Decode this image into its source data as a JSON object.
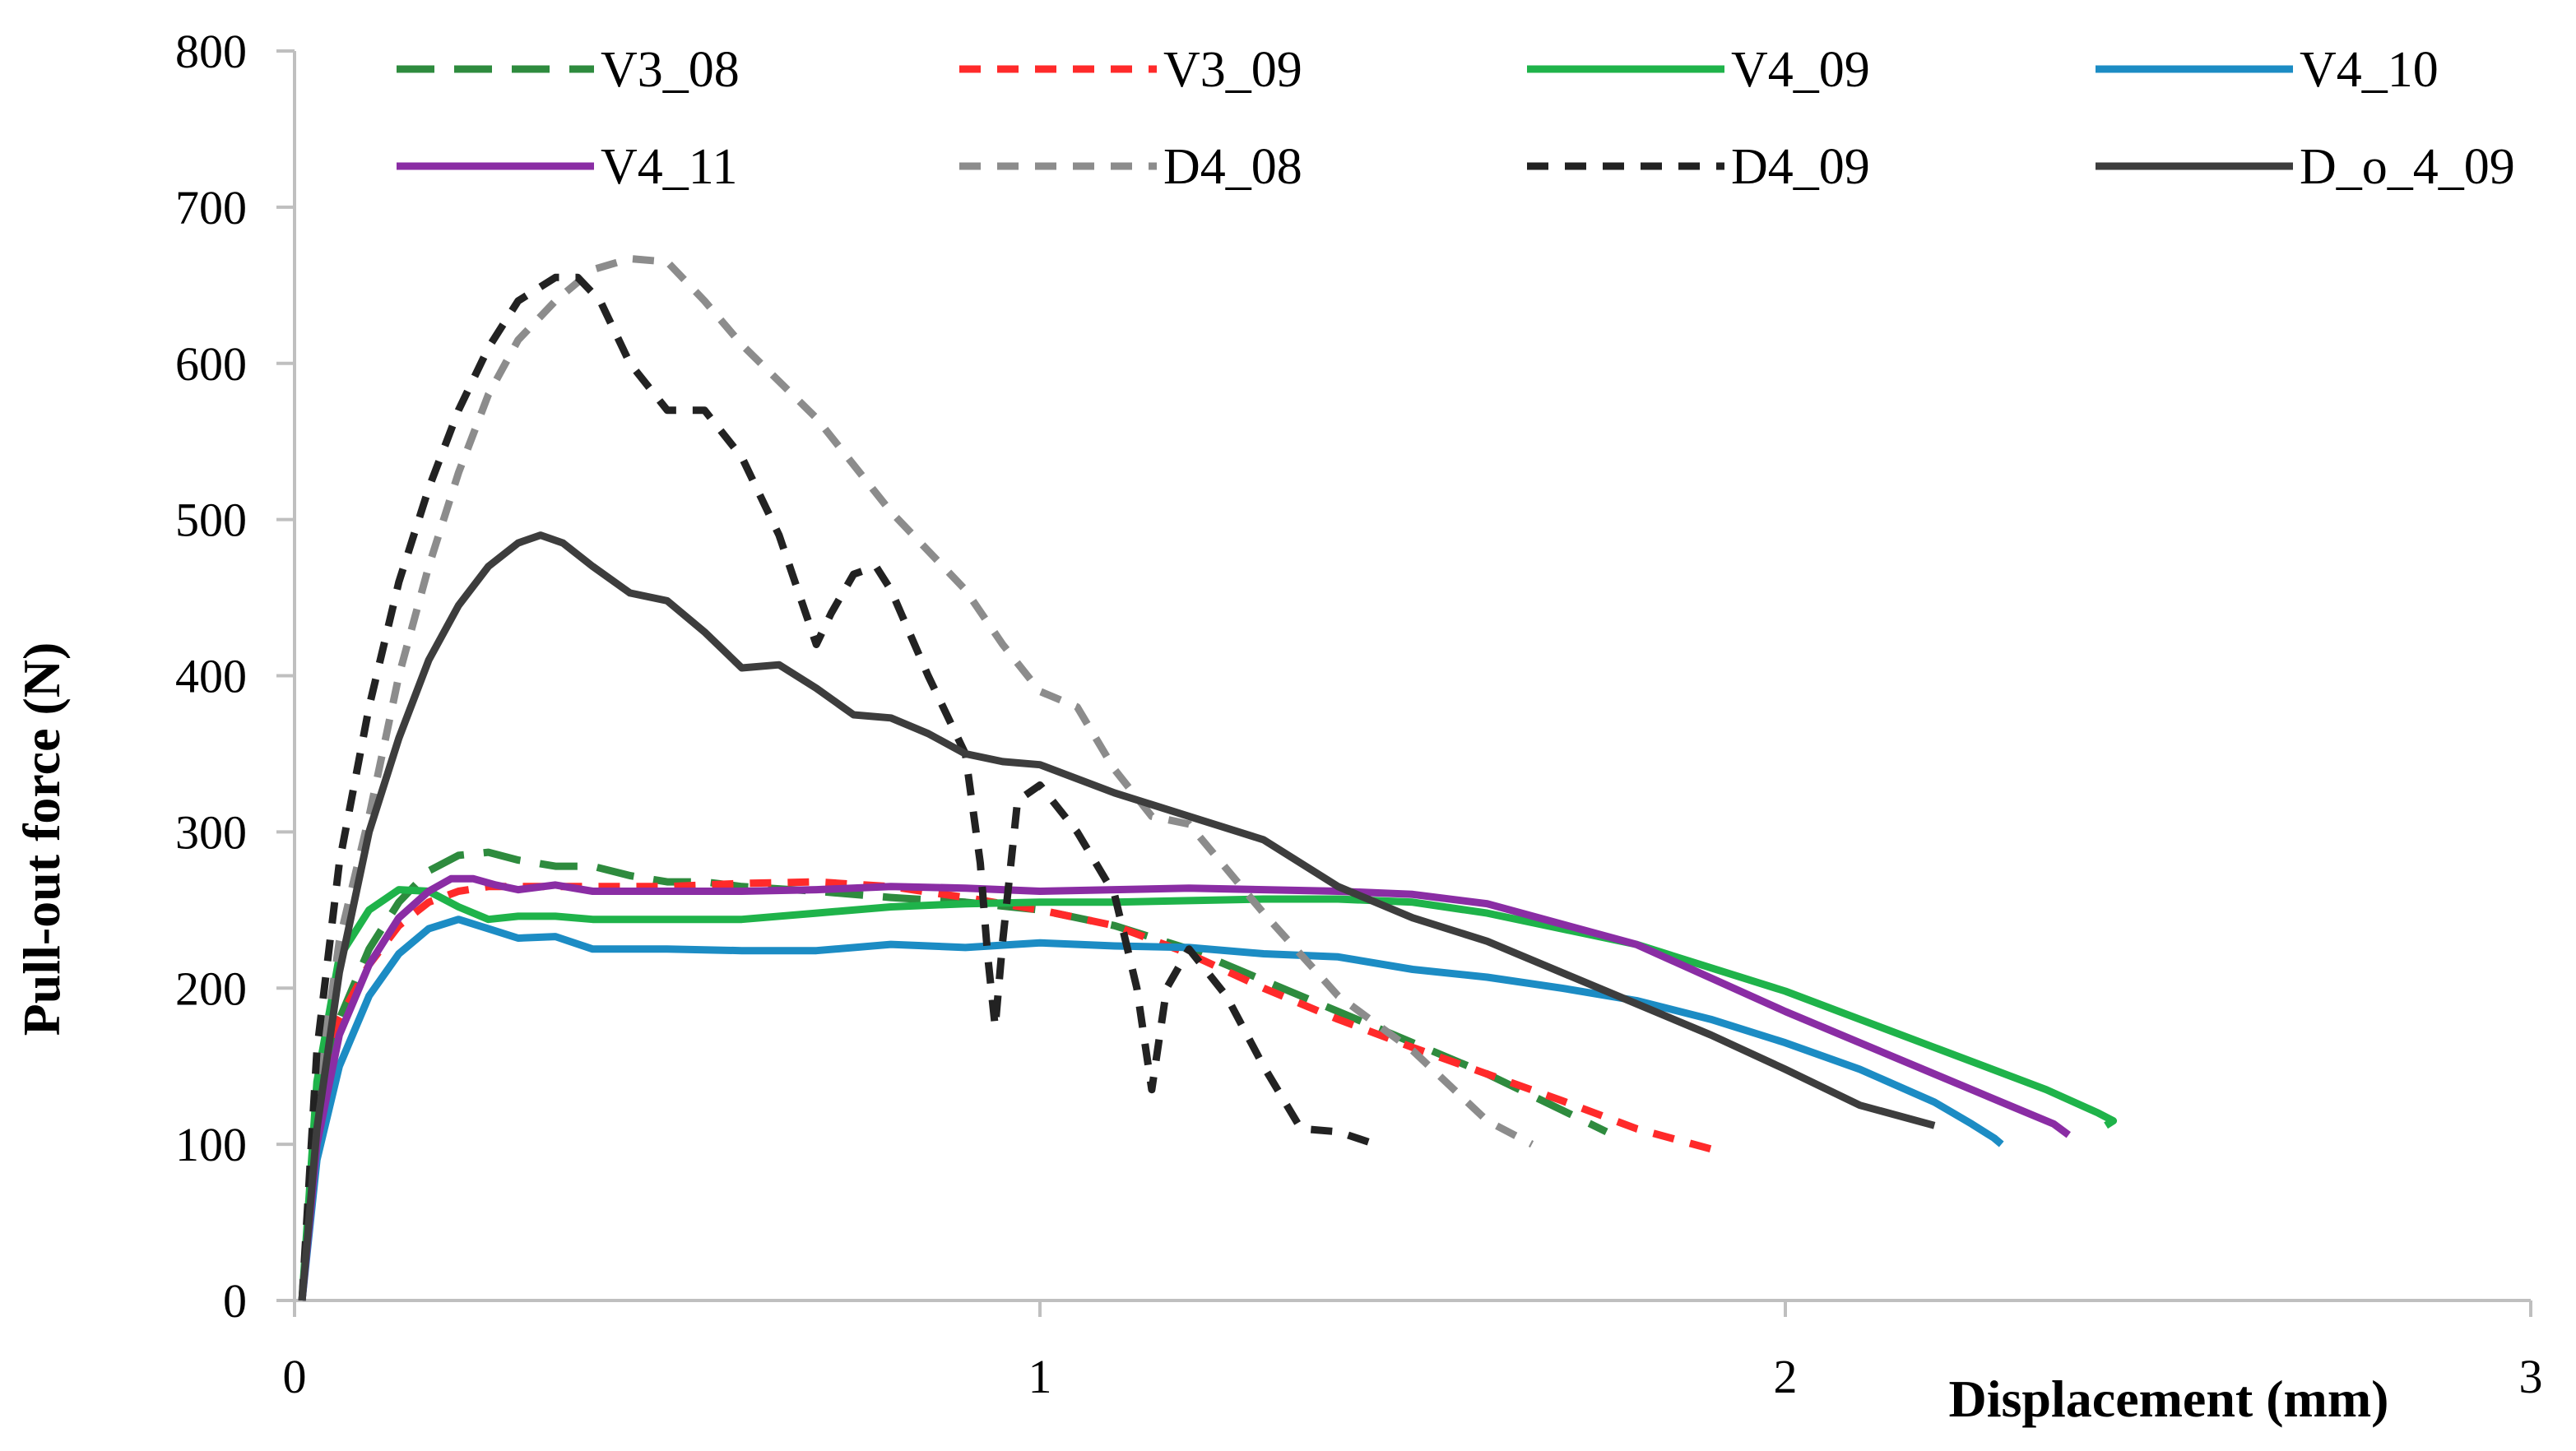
{
  "chart_data": {
    "type": "line",
    "title": "",
    "xlabel": "Displacement (mm)",
    "ylabel": "Pull-out force (N)",
    "xlim": [
      0,
      3
    ],
    "ylim": [
      0,
      800
    ],
    "x_ticks": [
      "0",
      "1",
      "2",
      "3"
    ],
    "x_tick_values": [
      0,
      1,
      2,
      3
    ],
    "y_ticks": [
      "0",
      "100",
      "200",
      "300",
      "400",
      "500",
      "600",
      "700",
      "800"
    ],
    "y_tick_values": [
      0,
      100,
      200,
      300,
      400,
      500,
      600,
      700,
      800
    ],
    "grid": false,
    "legend_position": "top",
    "series": [
      {
        "name": "V3_08",
        "color": "#2e8b3e",
        "dash": "long-dash",
        "x": [
          0.01,
          0.03,
          0.06,
          0.1,
          0.14,
          0.18,
          0.22,
          0.26,
          0.3,
          0.35,
          0.4,
          0.45,
          0.5,
          0.55,
          0.6,
          0.7,
          0.8,
          0.9,
          1.0,
          1.1,
          1.2,
          1.3,
          1.4,
          1.5,
          1.6,
          1.7,
          1.76
        ],
        "values": [
          0,
          120,
          180,
          225,
          255,
          275,
          285,
          287,
          282,
          278,
          278,
          272,
          268,
          268,
          265,
          262,
          258,
          255,
          250,
          240,
          225,
          205,
          185,
          165,
          145,
          122,
          108
        ]
      },
      {
        "name": "V3_09",
        "color": "#ff2a2a",
        "dash": "short-dash",
        "x": [
          0.01,
          0.03,
          0.06,
          0.1,
          0.14,
          0.18,
          0.22,
          0.26,
          0.3,
          0.4,
          0.5,
          0.6,
          0.7,
          0.8,
          0.9,
          1.0,
          1.1,
          1.2,
          1.3,
          1.4,
          1.5,
          1.6,
          1.7,
          1.8,
          1.9
        ],
        "values": [
          0,
          110,
          180,
          215,
          240,
          255,
          262,
          265,
          265,
          265,
          265,
          267,
          268,
          265,
          258,
          250,
          240,
          222,
          200,
          180,
          162,
          145,
          128,
          110,
          97
        ]
      },
      {
        "name": "V4_09",
        "color": "#1fb34a",
        "dash": "solid",
        "x": [
          0.01,
          0.03,
          0.06,
          0.1,
          0.14,
          0.18,
          0.22,
          0.26,
          0.3,
          0.35,
          0.4,
          0.5,
          0.6,
          0.7,
          0.8,
          0.9,
          1.0,
          1.1,
          1.2,
          1.3,
          1.4,
          1.5,
          1.6,
          1.8,
          2.0,
          2.2,
          2.35,
          2.42,
          2.44,
          2.43
        ],
        "values": [
          0,
          140,
          220,
          250,
          263,
          262,
          252,
          244,
          246,
          246,
          244,
          244,
          244,
          248,
          252,
          254,
          255,
          255,
          256,
          257,
          257,
          255,
          248,
          228,
          198,
          162,
          135,
          120,
          115,
          112
        ]
      },
      {
        "name": "V4_10",
        "color": "#1c8cc4",
        "dash": "solid",
        "x": [
          0.01,
          0.03,
          0.06,
          0.1,
          0.14,
          0.18,
          0.22,
          0.26,
          0.3,
          0.35,
          0.4,
          0.5,
          0.6,
          0.7,
          0.8,
          0.9,
          1.0,
          1.1,
          1.2,
          1.3,
          1.4,
          1.5,
          1.6,
          1.7,
          1.8,
          1.9,
          2.0,
          2.1,
          2.2,
          2.25,
          2.28,
          2.29
        ],
        "values": [
          0,
          90,
          150,
          195,
          222,
          238,
          244,
          238,
          232,
          233,
          225,
          225,
          224,
          224,
          228,
          226,
          229,
          227,
          226,
          222,
          220,
          212,
          207,
          200,
          192,
          180,
          165,
          148,
          127,
          113,
          104,
          100
        ]
      },
      {
        "name": "V4_11",
        "color": "#8a2da4",
        "dash": "solid",
        "x": [
          0.01,
          0.03,
          0.06,
          0.1,
          0.14,
          0.18,
          0.21,
          0.24,
          0.27,
          0.3,
          0.35,
          0.4,
          0.5,
          0.6,
          0.7,
          0.8,
          0.9,
          1.0,
          1.1,
          1.2,
          1.3,
          1.4,
          1.5,
          1.6,
          1.8,
          2.0,
          2.2,
          2.3,
          2.36,
          2.38
        ],
        "values": [
          0,
          100,
          170,
          215,
          245,
          262,
          270,
          270,
          266,
          263,
          266,
          262,
          262,
          262,
          263,
          265,
          264,
          262,
          263,
          264,
          263,
          262,
          260,
          254,
          228,
          185,
          145,
          125,
          113,
          106
        ]
      },
      {
        "name": "D4_08",
        "color": "#8c8c8c",
        "dash": "short-dash",
        "x": [
          0.01,
          0.03,
          0.06,
          0.1,
          0.14,
          0.18,
          0.22,
          0.26,
          0.3,
          0.35,
          0.4,
          0.45,
          0.5,
          0.55,
          0.6,
          0.7,
          0.8,
          0.9,
          0.95,
          1.0,
          1.05,
          1.1,
          1.15,
          1.2,
          1.3,
          1.4,
          1.5,
          1.6,
          1.66
        ],
        "values": [
          0,
          130,
          230,
          310,
          400,
          470,
          530,
          580,
          615,
          640,
          660,
          667,
          665,
          640,
          612,
          565,
          505,
          455,
          420,
          390,
          380,
          340,
          310,
          305,
          248,
          195,
          160,
          115,
          100
        ]
      },
      {
        "name": "D4_09",
        "color": "#222222",
        "dash": "short-dash",
        "x": [
          0.01,
          0.03,
          0.06,
          0.1,
          0.14,
          0.18,
          0.22,
          0.26,
          0.3,
          0.35,
          0.38,
          0.41,
          0.45,
          0.5,
          0.55,
          0.6,
          0.65,
          0.7,
          0.72,
          0.75,
          0.78,
          0.8,
          0.85,
          0.9,
          0.92,
          0.93,
          0.94,
          0.95,
          0.97,
          1.0,
          1.05,
          1.1,
          1.13,
          1.15,
          1.17,
          1.2,
          1.25,
          1.3,
          1.35,
          1.4,
          1.45
        ],
        "values": [
          0,
          160,
          280,
          380,
          460,
          520,
          570,
          610,
          640,
          655,
          655,
          640,
          600,
          570,
          570,
          540,
          490,
          420,
          440,
          465,
          470,
          455,
          400,
          350,
          280,
          220,
          175,
          230,
          320,
          330,
          300,
          260,
          200,
          135,
          200,
          225,
          195,
          150,
          110,
          108,
          100
        ]
      },
      {
        "name": "D_o_4_09",
        "color": "#3d3d3d",
        "dash": "solid",
        "x": [
          0.01,
          0.03,
          0.06,
          0.1,
          0.14,
          0.18,
          0.22,
          0.26,
          0.3,
          0.33,
          0.36,
          0.4,
          0.45,
          0.5,
          0.55,
          0.6,
          0.65,
          0.7,
          0.75,
          0.8,
          0.85,
          0.9,
          0.95,
          1.0,
          1.1,
          1.2,
          1.3,
          1.4,
          1.5,
          1.6,
          1.7,
          1.8,
          1.9,
          2.0,
          2.1,
          2.2
        ],
        "values": [
          0,
          110,
          210,
          300,
          360,
          410,
          445,
          470,
          485,
          490,
          485,
          470,
          453,
          448,
          428,
          405,
          407,
          392,
          375,
          373,
          363,
          350,
          345,
          343,
          325,
          310,
          295,
          265,
          245,
          230,
          210,
          190,
          170,
          148,
          125,
          112
        ]
      }
    ]
  }
}
